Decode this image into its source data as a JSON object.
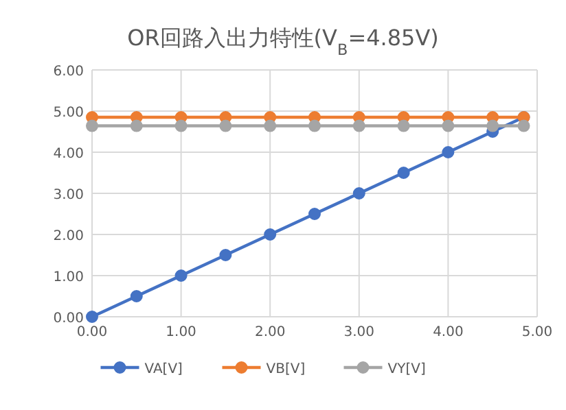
{
  "chart_data": {
    "type": "line",
    "title": "OR回路入出力特性(V$_{B}$=4.85V)",
    "x": [
      0,
      0.5,
      1,
      1.5,
      2,
      2.5,
      3,
      3.5,
      4,
      4.5,
      4.85
    ],
    "series": [
      {
        "name": "VA[V]",
        "color": "#4472c4",
        "values": [
          0,
          0.5,
          1,
          1.5,
          2,
          2.5,
          3,
          3.5,
          4,
          4.5,
          4.85
        ]
      },
      {
        "name": "VB[V]",
        "color": "#ed7d31",
        "values": [
          4.85,
          4.85,
          4.85,
          4.85,
          4.85,
          4.85,
          4.85,
          4.85,
          4.85,
          4.85,
          4.85
        ]
      },
      {
        "name": "VY[V]",
        "color": "#a5a5a5",
        "values": [
          4.64,
          4.64,
          4.64,
          4.64,
          4.64,
          4.64,
          4.64,
          4.64,
          4.64,
          4.64,
          4.64
        ]
      }
    ],
    "xlim": [
      0,
      5
    ],
    "ylim": [
      0,
      6
    ],
    "xticks": [
      {
        "value": 0,
        "label": "0.00"
      },
      {
        "value": 1,
        "label": "1.00"
      },
      {
        "value": 2,
        "label": "2.00"
      },
      {
        "value": 3,
        "label": "3.00"
      },
      {
        "value": 4,
        "label": "4.00"
      },
      {
        "value": 5,
        "label": "5.00"
      }
    ],
    "yticks": [
      {
        "value": 0,
        "label": "0.00"
      },
      {
        "value": 1,
        "label": "1.00"
      },
      {
        "value": 2,
        "label": "2.00"
      },
      {
        "value": 3,
        "label": "3.00"
      },
      {
        "value": 4,
        "label": "4.00"
      },
      {
        "value": 5,
        "label": "5.00"
      },
      {
        "value": 6,
        "label": "6.00"
      }
    ],
    "grid": true,
    "legend": "bottom",
    "marker": "circle",
    "line_style": "solid"
  }
}
